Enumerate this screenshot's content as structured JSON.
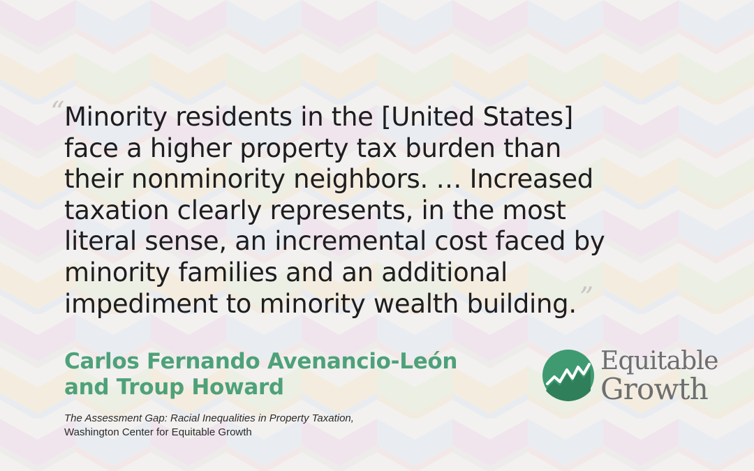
{
  "quote": {
    "lines": [
      "Minority residents in the [United States]",
      "face a higher property tax burden than",
      "their nonminority neighbors. … Increased",
      "taxation clearly represents, in the most",
      "literal sense, an incremental cost faced by",
      "minority families and an additional",
      "impediment to minority wealth building."
    ],
    "open_mark": "“",
    "close_mark": "”"
  },
  "author": {
    "line1": "Carlos Fernando Avenancio-León",
    "line2": "and Troup Howard"
  },
  "source": {
    "title": "The Assessment Gap: Racial Inequalities in Property Taxation,",
    "org": "Washington Center for Equitable Growth"
  },
  "logo": {
    "line1": "Equitable",
    "line2": "Growth"
  },
  "colors": {
    "author": "#4ea17a",
    "logo_green": "#3f9a72",
    "logo_text": "#6d6e70"
  }
}
